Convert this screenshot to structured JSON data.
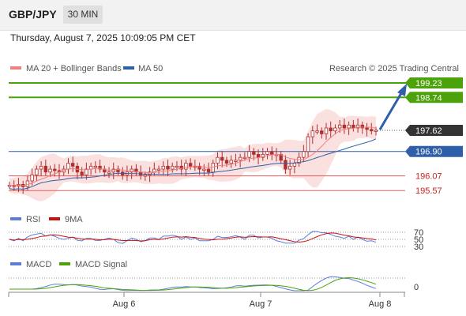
{
  "header": {
    "pair": "GBP/JPY",
    "timeframe": "30 MIN"
  },
  "timestamp": "Thursday, August 7, 2025 10:09:05 PM CET",
  "legend": {
    "ma20": "MA 20 + Bollinger Bands",
    "ma50": "MA 50",
    "credit": "Research © 2025 Trading Central"
  },
  "colors": {
    "ma20": "#f08080",
    "ma50": "#2f5fa8",
    "resistance": "#4ca20a",
    "support": "#e06060",
    "candle": "#b03030",
    "band": "#fbe0e0",
    "rsi": "#5b7fd6",
    "rsi_ma": "#cc1010",
    "macd": "#5b7fd6",
    "macd_signal": "#4ca20a",
    "arrow": "#2f5fa8"
  },
  "chart_data": {
    "type": "line",
    "subtype": "candlestick",
    "ylim": [
      195.2,
      199.5
    ],
    "levels": {
      "resistance": [
        {
          "value": 199.23,
          "label": "199.23"
        },
        {
          "value": 198.74,
          "label": "198.74"
        }
      ],
      "last_price": {
        "value": 197.62,
        "label": "197.62"
      },
      "ma50_level": {
        "value": 196.9,
        "label": "196.90"
      },
      "support": [
        {
          "value": 196.07,
          "label": "196.07"
        },
        {
          "value": 195.57,
          "label": "195.57"
        }
      ]
    },
    "x_ticks": [
      "Aug 6",
      "Aug 7",
      "Aug 8"
    ],
    "rsi": {
      "legend": [
        "RSI",
        "9MA"
      ],
      "levels": [
        "70",
        "50",
        "30"
      ]
    },
    "macd": {
      "legend": [
        "MACD",
        "MACD Signal"
      ],
      "zero_label": "0"
    },
    "price_close": [
      195.75,
      195.72,
      195.78,
      195.7,
      195.9,
      196.1,
      196.3,
      196.4,
      196.2,
      196.3,
      196.25,
      196.2,
      196.3,
      196.5,
      196.4,
      196.2,
      196.1,
      196.3,
      196.4,
      196.4,
      196.3,
      196.2,
      196.2,
      196.3,
      196.2,
      196.1,
      196.2,
      196.3,
      196.2,
      196.1,
      196.1,
      196.2,
      196.3,
      196.3,
      196.4,
      196.3,
      196.4,
      196.4,
      196.3,
      196.5,
      196.4,
      196.4,
      196.3,
      196.3,
      196.2,
      196.5,
      196.7,
      196.6,
      196.5,
      196.6,
      196.6,
      196.7,
      196.7,
      196.9,
      196.8,
      196.7,
      196.8,
      196.9,
      196.8,
      196.8,
      196.6,
      196.3,
      196.4,
      196.5,
      196.7,
      196.9,
      197.4,
      197.6,
      197.6,
      197.5,
      197.7,
      197.6,
      197.7,
      197.8,
      197.7,
      197.8,
      197.7,
      197.8,
      197.7,
      197.65,
      197.6,
      197.62
    ]
  }
}
